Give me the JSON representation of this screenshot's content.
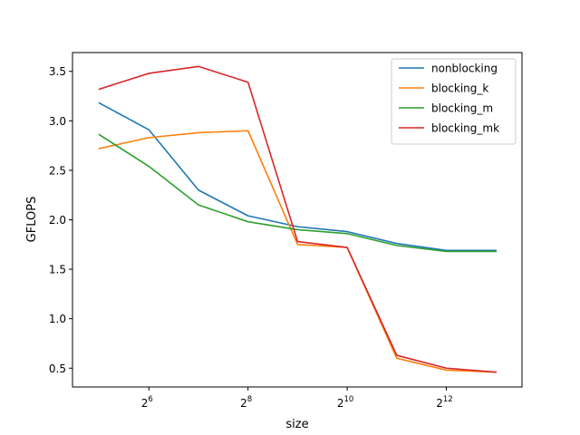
{
  "chart_data": {
    "type": "line",
    "title": "",
    "xlabel": "size",
    "ylabel": "GFLOPS",
    "x_scale": "log2",
    "x": [
      32,
      64,
      128,
      256,
      512,
      1024,
      2048,
      4096,
      8192
    ],
    "xlim": [
      22,
      11800
    ],
    "ylim": [
      0.31,
      3.69
    ],
    "x_ticks": [
      {
        "value": 64,
        "base": "2",
        "exp": "6"
      },
      {
        "value": 256,
        "base": "2",
        "exp": "8"
      },
      {
        "value": 1024,
        "base": "2",
        "exp": "10"
      },
      {
        "value": 4096,
        "base": "2",
        "exp": "12"
      }
    ],
    "y_ticks": [
      {
        "value": 0.5,
        "label": "0.5"
      },
      {
        "value": 1.0,
        "label": "1.0"
      },
      {
        "value": 1.5,
        "label": "1.5"
      },
      {
        "value": 2.0,
        "label": "2.0"
      },
      {
        "value": 2.5,
        "label": "2.5"
      },
      {
        "value": 3.0,
        "label": "3.0"
      },
      {
        "value": 3.5,
        "label": "3.5"
      }
    ],
    "grid": false,
    "legend_position": "top-right",
    "series": [
      {
        "name": "nonblocking",
        "color": "#1f77b4",
        "values": [
          3.18,
          2.91,
          2.3,
          2.04,
          1.93,
          1.88,
          1.76,
          1.69,
          1.69
        ]
      },
      {
        "name": "blocking_k",
        "color": "#ff7f0e",
        "values": [
          2.72,
          2.83,
          2.88,
          2.9,
          1.75,
          1.72,
          0.6,
          0.48,
          0.46
        ]
      },
      {
        "name": "blocking_m",
        "color": "#2ca02c",
        "values": [
          2.86,
          2.54,
          2.15,
          1.98,
          1.9,
          1.86,
          1.74,
          1.68,
          1.68
        ]
      },
      {
        "name": "blocking_mk",
        "color": "#d62728",
        "values": [
          3.32,
          3.48,
          3.55,
          3.39,
          1.78,
          1.72,
          0.63,
          0.5,
          0.46
        ]
      }
    ]
  }
}
